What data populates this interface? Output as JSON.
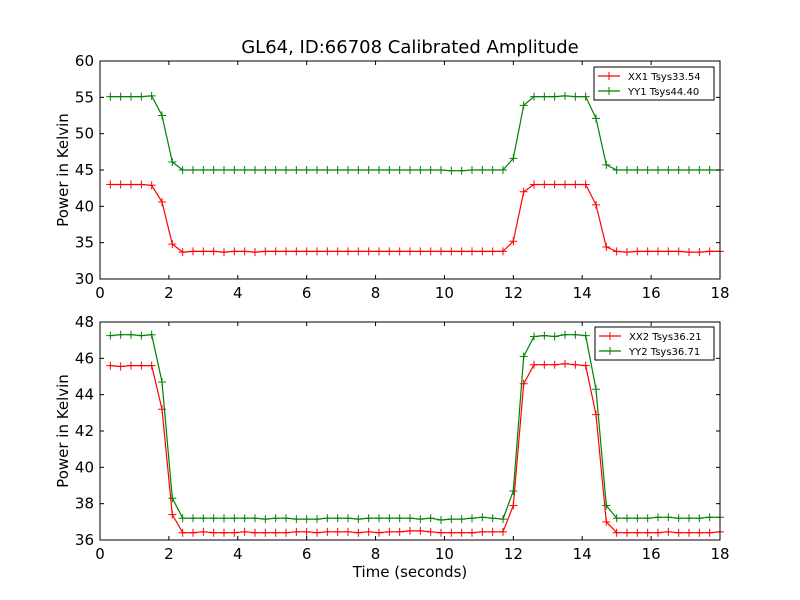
{
  "chart_data": [
    {
      "type": "line",
      "title": "GL64, ID:66708 Calibrated Amplitude",
      "xlabel": "",
      "ylabel": "Power in Kelvin",
      "xlim": [
        0,
        18
      ],
      "ylim": [
        30,
        60
      ],
      "xticks": [
        0,
        2,
        4,
        6,
        8,
        10,
        12,
        14,
        16,
        18
      ],
      "yticks": [
        30,
        35,
        40,
        45,
        50,
        55,
        60
      ],
      "grid": false,
      "legend_position": "top-right",
      "marker": "plus",
      "x": [
        0.3,
        0.6,
        0.9,
        1.2,
        1.5,
        1.8,
        2.1,
        2.4,
        2.7,
        3.0,
        3.3,
        3.6,
        3.9,
        4.2,
        4.5,
        4.8,
        5.1,
        5.4,
        5.7,
        6.0,
        6.3,
        6.6,
        6.9,
        7.2,
        7.5,
        7.8,
        8.1,
        8.4,
        8.7,
        9.0,
        9.3,
        9.6,
        9.9,
        10.2,
        10.5,
        10.8,
        11.1,
        11.4,
        11.7,
        12.0,
        12.3,
        12.6,
        12.9,
        13.2,
        13.5,
        13.8,
        14.1,
        14.4,
        14.7,
        15.0,
        15.3,
        15.6,
        15.9,
        16.2,
        16.5,
        16.8,
        17.1,
        17.4,
        17.7,
        18.0
      ],
      "series": [
        {
          "name": "XX1 Tsys33.54",
          "color": "#ff0000",
          "values": [
            43.0,
            43.0,
            43.0,
            43.0,
            42.9,
            40.6,
            34.8,
            33.7,
            33.8,
            33.8,
            33.8,
            33.7,
            33.8,
            33.8,
            33.7,
            33.8,
            33.8,
            33.8,
            33.8,
            33.8,
            33.8,
            33.8,
            33.8,
            33.8,
            33.8,
            33.8,
            33.8,
            33.8,
            33.8,
            33.8,
            33.8,
            33.8,
            33.8,
            33.8,
            33.8,
            33.8,
            33.8,
            33.8,
            33.8,
            35.2,
            42.0,
            43.0,
            43.0,
            43.0,
            43.0,
            43.0,
            43.0,
            40.2,
            34.4,
            33.8,
            33.7,
            33.8,
            33.8,
            33.8,
            33.8,
            33.8,
            33.7,
            33.7,
            33.8,
            33.8
          ]
        },
        {
          "name": "YY1 Tsys44.40",
          "color": "#008000",
          "values": [
            55.1,
            55.1,
            55.1,
            55.1,
            55.2,
            52.5,
            46.1,
            45.0,
            45.0,
            45.0,
            45.0,
            45.0,
            45.0,
            45.0,
            45.0,
            45.0,
            45.0,
            45.0,
            45.0,
            45.0,
            45.0,
            45.0,
            45.0,
            45.0,
            45.0,
            45.0,
            45.0,
            45.0,
            45.0,
            45.0,
            45.0,
            45.0,
            45.0,
            44.9,
            44.9,
            45.0,
            45.0,
            45.0,
            45.0,
            46.6,
            53.9,
            55.1,
            55.1,
            55.1,
            55.2,
            55.1,
            55.1,
            52.1,
            45.7,
            45.0,
            45.0,
            45.0,
            45.0,
            45.0,
            45.0,
            45.0,
            45.0,
            45.0,
            45.0,
            45.0
          ]
        }
      ]
    },
    {
      "type": "line",
      "title": "",
      "xlabel": "Time (seconds)",
      "ylabel": "Power in Kelvin",
      "xlim": [
        0,
        18
      ],
      "ylim": [
        36,
        48
      ],
      "xticks": [
        0,
        2,
        4,
        6,
        8,
        10,
        12,
        14,
        16,
        18
      ],
      "yticks": [
        36,
        38,
        40,
        42,
        44,
        46,
        48
      ],
      "grid": false,
      "legend_position": "top-right",
      "marker": "plus",
      "x": [
        0.3,
        0.6,
        0.9,
        1.2,
        1.5,
        1.8,
        2.1,
        2.4,
        2.7,
        3.0,
        3.3,
        3.6,
        3.9,
        4.2,
        4.5,
        4.8,
        5.1,
        5.4,
        5.7,
        6.0,
        6.3,
        6.6,
        6.9,
        7.2,
        7.5,
        7.8,
        8.1,
        8.4,
        8.7,
        9.0,
        9.3,
        9.6,
        9.9,
        10.2,
        10.5,
        10.8,
        11.1,
        11.4,
        11.7,
        12.0,
        12.3,
        12.6,
        12.9,
        13.2,
        13.5,
        13.8,
        14.1,
        14.4,
        14.7,
        15.0,
        15.3,
        15.6,
        15.9,
        16.2,
        16.5,
        16.8,
        17.1,
        17.4,
        17.7,
        18.0
      ],
      "series": [
        {
          "name": "XX2 Tsys36.21",
          "color": "#ff0000",
          "values": [
            45.6,
            45.55,
            45.6,
            45.6,
            45.6,
            43.2,
            37.4,
            36.4,
            36.4,
            36.45,
            36.4,
            36.4,
            36.4,
            36.45,
            36.4,
            36.4,
            36.4,
            36.4,
            36.45,
            36.45,
            36.4,
            36.45,
            36.45,
            36.45,
            36.4,
            36.45,
            36.4,
            36.45,
            36.45,
            36.5,
            36.5,
            36.45,
            36.4,
            36.4,
            36.4,
            36.4,
            36.45,
            36.45,
            36.45,
            37.9,
            44.6,
            45.65,
            45.65,
            45.65,
            45.7,
            45.65,
            45.6,
            42.9,
            37.0,
            36.4,
            36.4,
            36.4,
            36.4,
            36.4,
            36.45,
            36.4,
            36.4,
            36.4,
            36.4,
            36.45
          ]
        },
        {
          "name": "YY2 Tsys36.71",
          "color": "#008000",
          "values": [
            47.25,
            47.3,
            47.3,
            47.25,
            47.3,
            44.7,
            38.3,
            37.2,
            37.2,
            37.2,
            37.2,
            37.2,
            37.2,
            37.2,
            37.2,
            37.15,
            37.2,
            37.2,
            37.15,
            37.15,
            37.15,
            37.2,
            37.2,
            37.2,
            37.15,
            37.2,
            37.2,
            37.2,
            37.2,
            37.2,
            37.15,
            37.2,
            37.1,
            37.15,
            37.15,
            37.2,
            37.25,
            37.2,
            37.15,
            38.7,
            46.1,
            47.2,
            47.25,
            47.2,
            47.3,
            47.3,
            47.25,
            44.3,
            37.9,
            37.2,
            37.2,
            37.2,
            37.2,
            37.25,
            37.25,
            37.2,
            37.2,
            37.2,
            37.25,
            37.25
          ]
        }
      ]
    }
  ]
}
